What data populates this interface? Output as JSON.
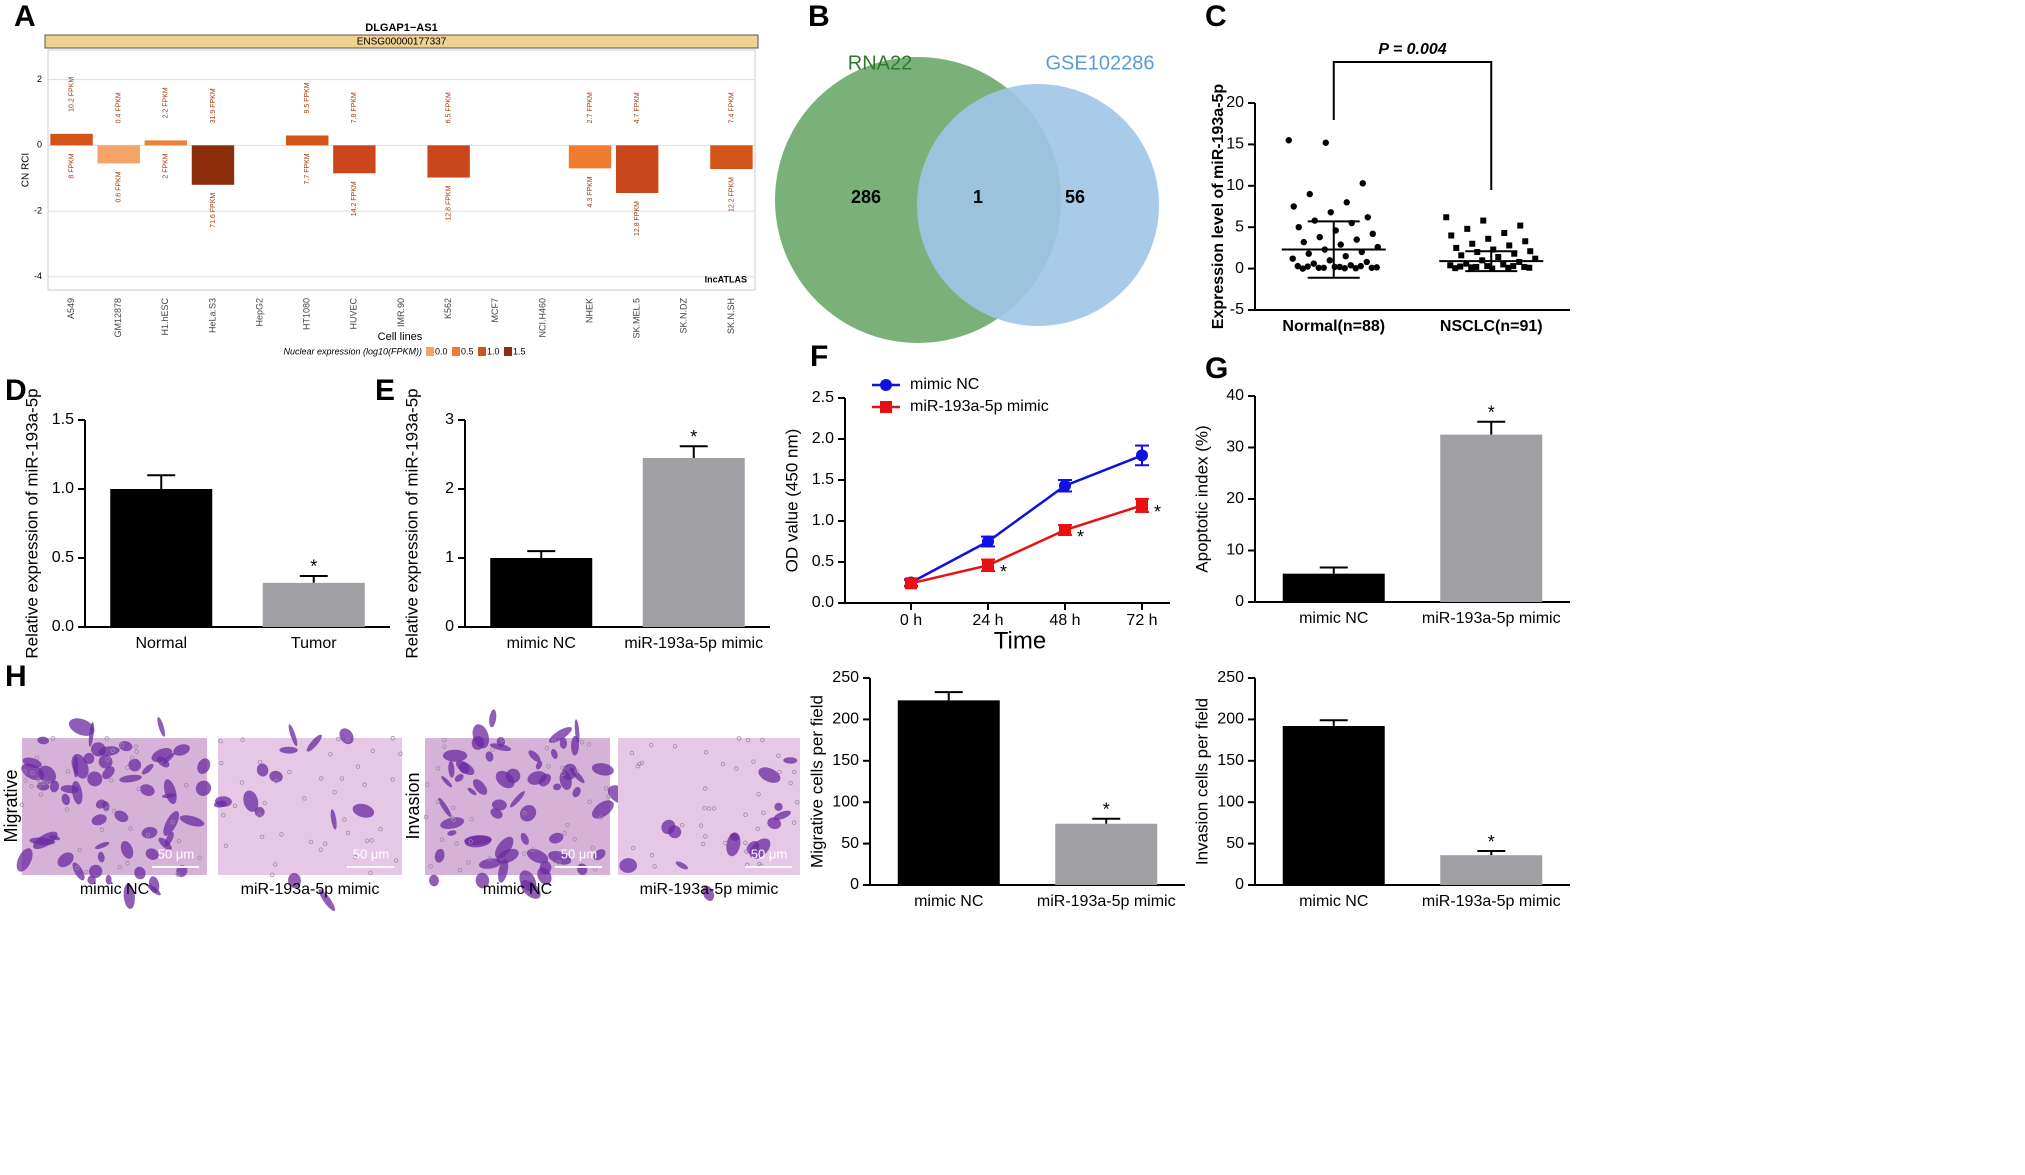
{
  "panel_labels": [
    "A",
    "B",
    "C",
    "D",
    "E",
    "F",
    "G",
    "H"
  ],
  "images": {
    "row_labels": [
      "Migrative",
      "Invasion"
    ],
    "captions": [
      "mimic NC",
      "miR-193a-5p mimic",
      "mimic NC",
      "miR-193a-5p mimic"
    ],
    "scale_bars": [
      "50 μm",
      "50 μm",
      "50 μm",
      "50 μm"
    ]
  },
  "chart_data": [
    {
      "type": "bar",
      "title": "DLGAP1−AS1",
      "subtitle": "ENSG00000177337",
      "y_label": "CN RCI",
      "x_label": "Cell lines",
      "annotation": "lncATLAS",
      "categories": [
        "A549",
        "GM12878",
        "H1.hESC",
        "HeLa.S3",
        "HepG2",
        "HT1080",
        "HUVEC",
        "IMR.90",
        "K562",
        "MCF7",
        "NCI.H460",
        "NHEK",
        "SK.MEL.5",
        "SK.N.DZ",
        "SK.N.SH"
      ],
      "values": [
        0.35,
        -0.55,
        0.15,
        -1.2,
        null,
        0.3,
        -0.85,
        null,
        -0.98,
        null,
        null,
        -0.7,
        -1.45,
        null,
        -0.72
      ],
      "colors": [
        "#d35418",
        "#f6a367",
        "#ee8236",
        "#8c2d0c",
        null,
        "#d35418",
        "#c9471a",
        null,
        "#c9471a",
        null,
        null,
        "#ee7b30",
        "#c9471a",
        null,
        "#d35418"
      ],
      "labels_above": [
        "10.2 FPKM",
        "0.4 FPKM",
        "2.2 FPKM",
        "31.9 FPKM",
        null,
        "9.5 FPKM",
        "7.8 FPKM",
        null,
        "6.5 FPKM",
        null,
        null,
        "2.7 FPKM",
        "4.7 FPKM",
        null,
        "7.4 FPKM"
      ],
      "labels_below": [
        "8 FPKM",
        "0.6 FPKM",
        "2 FPKM",
        "71.6 FPKM",
        null,
        "7.7 FPKM",
        "14.2 FPKM",
        null,
        "12.8 FPKM",
        null,
        null,
        "4.3 FPKM",
        "12.8 FPKM",
        null,
        "12.2 FPKM"
      ],
      "ylim": [
        -4.4,
        2.9
      ],
      "yticks": [
        -4,
        -2,
        0,
        2
      ],
      "grid": true,
      "legend": {
        "title": "Nuclear expression (log10(FPKM))",
        "labels": [
          "0.0",
          "0.5",
          "1.0",
          "1.5"
        ],
        "colors": [
          "#f6a367",
          "#ee7b30",
          "#d35418",
          "#8c2d0c"
        ]
      }
    },
    {
      "type": "venn",
      "sets": [
        {
          "name": "RNA22",
          "color": "#6aa86a",
          "value": 286
        },
        {
          "name": "GSE102286",
          "color": "#9fc5e8",
          "value": 56
        }
      ],
      "intersection": 1
    },
    {
      "type": "strip",
      "y_label": "Expression level of  miR-193a-5p",
      "annotation": "P = 0.004",
      "categories": [
        "Normal(n=88)",
        "NSCLC(n=91)"
      ],
      "points": [
        [
          15.5,
          15.2,
          10.3,
          9,
          8,
          7.5,
          6.8,
          6.2,
          5.8,
          5.5,
          5,
          4.6,
          4.2,
          3.8,
          3.5,
          3.2,
          2.9,
          2.6,
          2.3,
          2,
          1.8,
          1.5,
          1.2,
          1,
          0.8,
          0.6,
          0.4,
          0.3,
          0.2,
          0.1,
          0.1,
          0.05,
          0,
          0.2,
          0.15,
          0.1,
          0.3,
          0.25,
          0.05
        ],
        [
          6.2,
          5.8,
          5.2,
          4.8,
          4.3,
          4,
          3.6,
          3.3,
          3,
          2.8,
          2.5,
          2.3,
          2.1,
          2,
          1.8,
          1.6,
          1.4,
          1.2,
          1,
          0.8,
          0.6,
          0.5,
          0.4,
          0.3,
          0.2,
          0.15,
          0.1,
          0.05,
          0,
          0.1,
          0.2,
          0.3,
          0.25
        ]
      ],
      "means": [
        2.3,
        0.9
      ],
      "sds": [
        3.4,
        1.2
      ],
      "markers": [
        "circle",
        "square"
      ],
      "ylim": [
        -5,
        20
      ],
      "yticks": [
        -5,
        0,
        5,
        10,
        15,
        20
      ]
    },
    {
      "type": "bar",
      "y_label": "Relative expression of miR-193a-5p",
      "categories": [
        "Normal",
        "Tumor"
      ],
      "values": [
        1.0,
        0.32
      ],
      "errors": [
        0.1,
        0.05
      ],
      "colors": [
        "#000000",
        "#a0a0a4"
      ],
      "significance": [
        null,
        "*"
      ],
      "ylim": [
        0,
        1.5
      ],
      "yticks": [
        {
          "value": 0,
          "label": "0.0"
        },
        0.5,
        {
          "value": 1,
          "label": "1.0"
        },
        1.5
      ]
    },
    {
      "type": "bar",
      "y_label": "Relative expression of miR-193a-5p",
      "categories": [
        "mimic NC",
        "miR-193a-5p mimic"
      ],
      "values": [
        1.0,
        2.45
      ],
      "errors": [
        0.1,
        0.17
      ],
      "colors": [
        "#000000",
        "#a0a0a4"
      ],
      "significance": [
        null,
        "*"
      ],
      "ylim": [
        0,
        3
      ],
      "yticks": [
        0,
        1,
        2,
        3
      ]
    },
    {
      "type": "line",
      "y_label": "OD value (450 nm)",
      "x_label": "Time",
      "categories": [
        "0 h",
        "24 h",
        "48 h",
        "72 h"
      ],
      "series": [
        {
          "name": "mimic NC",
          "color": "#1010e0",
          "marker": "circle",
          "values": [
            0.25,
            0.75,
            1.43,
            1.8
          ],
          "errors": [
            0.04,
            0.06,
            0.07,
            0.12
          ],
          "significance": [
            null,
            null,
            null,
            null
          ]
        },
        {
          "name": "miR-193a-5p mimic",
          "color": "#e81010",
          "marker": "square",
          "values": [
            0.24,
            0.46,
            0.89,
            1.19
          ],
          "errors": [
            0.04,
            0.07,
            0.06,
            0.08
          ],
          "significance": [
            null,
            "*",
            "*",
            "*"
          ]
        }
      ],
      "ylim": [
        0,
        2.5
      ],
      "yticks": [
        {
          "value": 0,
          "label": "0.0"
        },
        0.5,
        {
          "value": 1,
          "label": "1.0"
        },
        1.5,
        {
          "value": 2,
          "label": "2.0"
        },
        2.5
      ]
    },
    {
      "type": "bar",
      "y_label": "Apoptotic index (%)",
      "categories": [
        "mimic NC",
        "miR-193a-5p mimic"
      ],
      "values": [
        5.5,
        32.5
      ],
      "errors": [
        1.2,
        2.5
      ],
      "colors": [
        "#000000",
        "#a0a0a4"
      ],
      "significance": [
        null,
        "*"
      ],
      "ylim": [
        0,
        40
      ],
      "yticks": [
        0,
        10,
        20,
        30,
        40
      ]
    },
    {
      "type": "bar",
      "y_label": "Migrative cells per field",
      "categories": [
        "mimic NC",
        "miR-193a-5p mimic"
      ],
      "values": [
        223,
        74
      ],
      "errors": [
        10,
        6
      ],
      "colors": [
        "#000000",
        "#a0a0a4"
      ],
      "significance": [
        null,
        "*"
      ],
      "ylim": [
        0,
        250
      ],
      "yticks": [
        0,
        50,
        100,
        150,
        200,
        250
      ]
    },
    {
      "type": "bar",
      "y_label": "Invasion cells per field",
      "categories": [
        "mimic NC",
        "miR-193a-5p mimic"
      ],
      "values": [
        192,
        36
      ],
      "errors": [
        7,
        5
      ],
      "colors": [
        "#000000",
        "#a0a0a4"
      ],
      "significance": [
        null,
        "*"
      ],
      "ylim": [
        0,
        250
      ],
      "yticks": [
        0,
        50,
        100,
        150,
        200,
        250
      ]
    }
  ]
}
